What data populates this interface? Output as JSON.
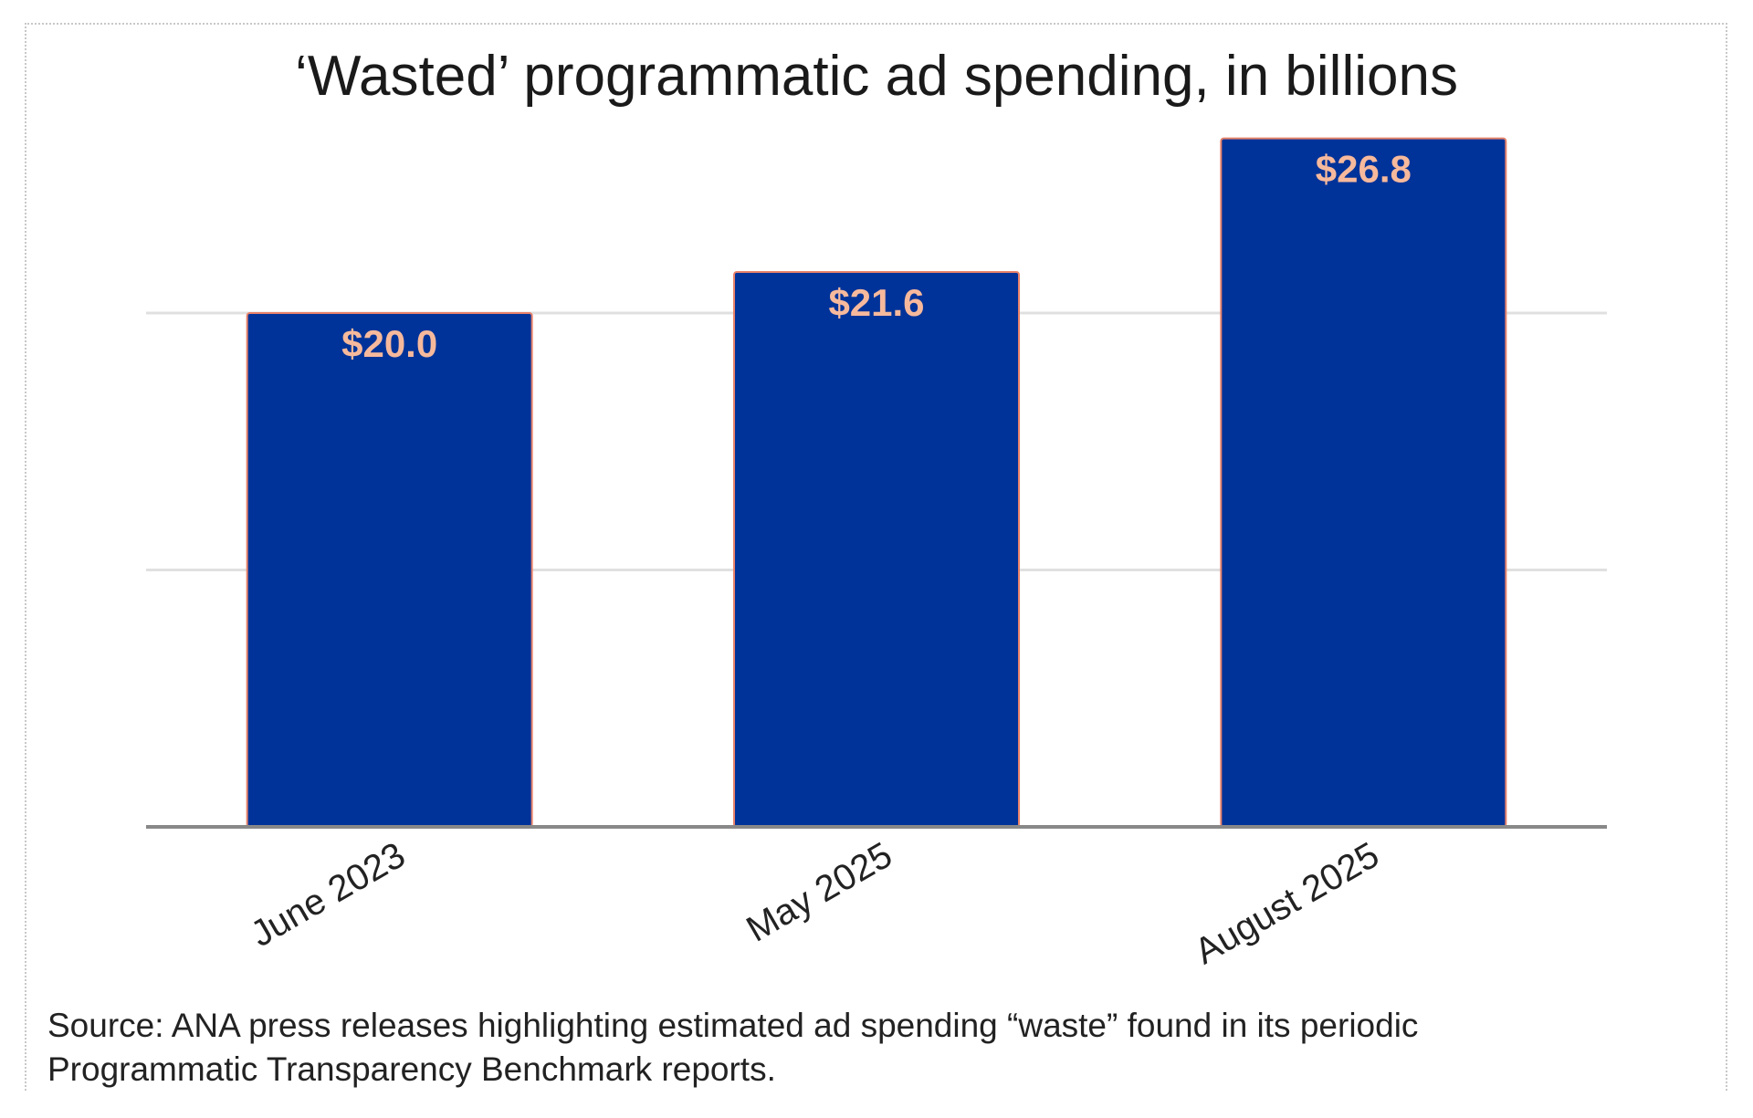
{
  "chart_data": {
    "type": "bar",
    "title": "‘Wasted’ programmatic ad spending, in billions",
    "categories": [
      "June 2023",
      "May 2025",
      "August 2025"
    ],
    "values": [
      20.0,
      21.6,
      26.8
    ],
    "data_labels": [
      "$20.0",
      "$21.6",
      "$26.8"
    ],
    "xlabel": "",
    "ylabel": "",
    "ylim": [
      0,
      30
    ],
    "gridlines": [
      10,
      20
    ],
    "grid": true,
    "legend": "none",
    "colors": {
      "bar": "#003399",
      "bar_outline": "#e8826a",
      "data_label": "#f7b99c",
      "grid": "#e0e0e0",
      "axis": "#888888"
    }
  },
  "source_note": {
    "line1": "Source: ANA press releases highlighting estimated ad spending “waste” found in its periodic",
    "line2": "Programmatic Transparency Benchmark reports."
  }
}
